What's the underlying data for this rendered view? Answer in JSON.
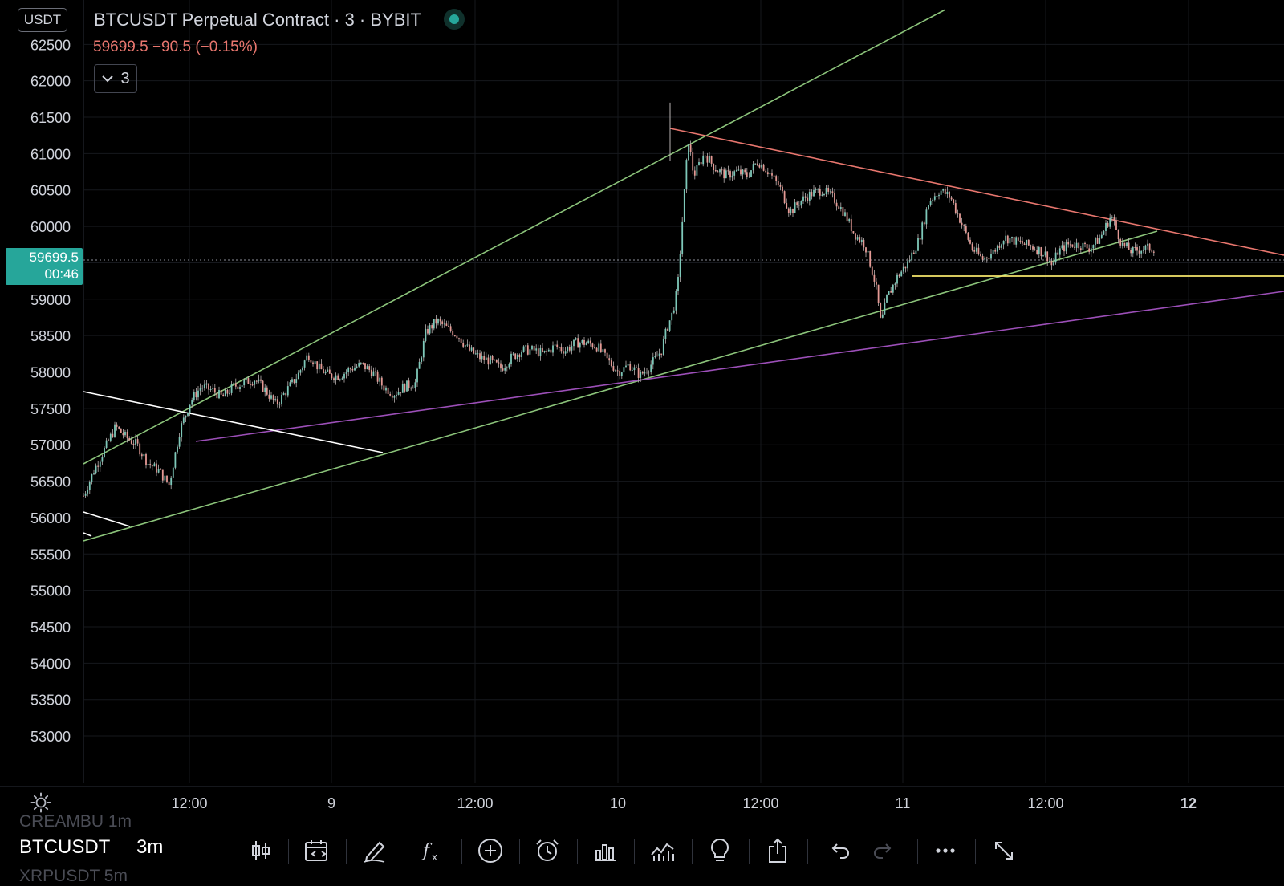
{
  "header": {
    "currency": "USDT",
    "title": "BTCUSDT Perpetual Contract · 3 · BYBIT",
    "price_change": "59699.5 −90.5 (−0.15%)",
    "interval_badge": "3",
    "last_price": "59699.5",
    "countdown": "00:46"
  },
  "colors": {
    "background": "#000000",
    "up": "#26a69a",
    "down": "#ef5350",
    "trend_green": "#8bc37a",
    "trend_red": "#e8766e",
    "trend_purple": "#9c4fb8",
    "support_yellow": "#f5e66b",
    "trend_white": "#ffffff"
  },
  "chart_data": {
    "type": "line",
    "title": "BTCUSDT Perpetual Contract · 3 · BYBIT",
    "ylim": [
      52700,
      63100
    ],
    "yticks": [
      62500,
      62000,
      61500,
      61000,
      60500,
      60000,
      59500,
      59000,
      58500,
      58000,
      57500,
      57000,
      56500,
      56000,
      55500,
      55000,
      54500,
      54000,
      53500,
      53000
    ],
    "xticks": [
      {
        "label": "12:00",
        "bold": false
      },
      {
        "label": "9",
        "bold": false
      },
      {
        "label": "12:00",
        "bold": false
      },
      {
        "label": "10",
        "bold": false
      },
      {
        "label": "12:00",
        "bold": false
      },
      {
        "label": "11",
        "bold": false
      },
      {
        "label": "12:00",
        "bold": false
      },
      {
        "label": "12",
        "bold": true
      }
    ],
    "last_price": 59699.5,
    "price_path": [
      [
        0.0,
        56300
      ],
      [
        0.01,
        56650
      ],
      [
        0.02,
        56950
      ],
      [
        0.03,
        57250
      ],
      [
        0.04,
        57100
      ],
      [
        0.05,
        57000
      ],
      [
        0.06,
        56750
      ],
      [
        0.07,
        56650
      ],
      [
        0.08,
        56450
      ],
      [
        0.09,
        57200
      ],
      [
        0.1,
        57600
      ],
      [
        0.11,
        57800
      ],
      [
        0.12,
        57750
      ],
      [
        0.13,
        57650
      ],
      [
        0.14,
        57800
      ],
      [
        0.15,
        57850
      ],
      [
        0.16,
        57900
      ],
      [
        0.17,
        57750
      ],
      [
        0.18,
        57550
      ],
      [
        0.19,
        57750
      ],
      [
        0.2,
        57950
      ],
      [
        0.21,
        58250
      ],
      [
        0.22,
        58050
      ],
      [
        0.23,
        57950
      ],
      [
        0.24,
        57950
      ],
      [
        0.25,
        58050
      ],
      [
        0.26,
        58100
      ],
      [
        0.27,
        58000
      ],
      [
        0.28,
        57800
      ],
      [
        0.29,
        57700
      ],
      [
        0.3,
        57800
      ],
      [
        0.31,
        57850
      ],
      [
        0.32,
        58550
      ],
      [
        0.33,
        58700
      ],
      [
        0.34,
        58600
      ],
      [
        0.35,
        58500
      ],
      [
        0.36,
        58300
      ],
      [
        0.37,
        58200
      ],
      [
        0.38,
        58150
      ],
      [
        0.39,
        58050
      ],
      [
        0.4,
        58200
      ],
      [
        0.41,
        58300
      ],
      [
        0.42,
        58300
      ],
      [
        0.43,
        58250
      ],
      [
        0.44,
        58350
      ],
      [
        0.45,
        58300
      ],
      [
        0.46,
        58400
      ],
      [
        0.47,
        58400
      ],
      [
        0.48,
        58350
      ],
      [
        0.49,
        58150
      ],
      [
        0.5,
        58000
      ],
      [
        0.51,
        58100
      ],
      [
        0.52,
        57950
      ],
      [
        0.53,
        58100
      ],
      [
        0.54,
        58300
      ],
      [
        0.545,
        58600
      ],
      [
        0.55,
        58800
      ],
      [
        0.555,
        59150
      ],
      [
        0.56,
        60200
      ],
      [
        0.565,
        61200
      ],
      [
        0.57,
        60700
      ],
      [
        0.58,
        61000
      ],
      [
        0.59,
        60800
      ],
      [
        0.6,
        60700
      ],
      [
        0.61,
        60750
      ],
      [
        0.62,
        60700
      ],
      [
        0.63,
        60900
      ],
      [
        0.64,
        60750
      ],
      [
        0.65,
        60550
      ],
      [
        0.66,
        60200
      ],
      [
        0.67,
        60350
      ],
      [
        0.68,
        60450
      ],
      [
        0.69,
        60500
      ],
      [
        0.7,
        60400
      ],
      [
        0.71,
        60200
      ],
      [
        0.72,
        59900
      ],
      [
        0.73,
        59750
      ],
      [
        0.74,
        59200
      ],
      [
        0.745,
        58650
      ],
      [
        0.75,
        59000
      ],
      [
        0.76,
        59300
      ],
      [
        0.77,
        59500
      ],
      [
        0.78,
        59800
      ],
      [
        0.79,
        60350
      ],
      [
        0.8,
        60500
      ],
      [
        0.81,
        60400
      ],
      [
        0.82,
        60050
      ],
      [
        0.83,
        59700
      ],
      [
        0.84,
        59550
      ],
      [
        0.85,
        59650
      ],
      [
        0.86,
        59850
      ],
      [
        0.87,
        59800
      ],
      [
        0.88,
        59750
      ],
      [
        0.89,
        59700
      ],
      [
        0.9,
        59600
      ],
      [
        0.905,
        59450
      ],
      [
        0.91,
        59650
      ],
      [
        0.92,
        59750
      ],
      [
        0.93,
        59750
      ],
      [
        0.94,
        59700
      ],
      [
        0.95,
        59850
      ],
      [
        0.96,
        60150
      ],
      [
        0.965,
        59950
      ],
      [
        0.97,
        59750
      ],
      [
        0.98,
        59650
      ],
      [
        0.99,
        59700
      ],
      [
        1.0,
        59699.5
      ]
    ]
  },
  "toolbar": {
    "ghost_above": "CREAMBU   1m",
    "symbol": "BTCUSDT",
    "interval": "3m",
    "ghost_below": "XRPUSDT   5m",
    "buttons": [
      {
        "icon": "candles-icon"
      },
      {
        "icon": "calendar-compare-icon"
      },
      {
        "icon": "pen-icon"
      },
      {
        "icon": "indicators-fx-icon"
      },
      {
        "icon": "plus-circle-icon"
      },
      {
        "icon": "alarm-icon"
      },
      {
        "icon": "bar-chart-icon"
      },
      {
        "icon": "line-chart-icon"
      },
      {
        "icon": "lightbulb-icon"
      },
      {
        "icon": "share-icon"
      },
      {
        "icon": "undo-icon"
      },
      {
        "icon": "redo-icon"
      },
      {
        "icon": "more-icon"
      },
      {
        "icon": "fullscreen-icon"
      }
    ]
  }
}
